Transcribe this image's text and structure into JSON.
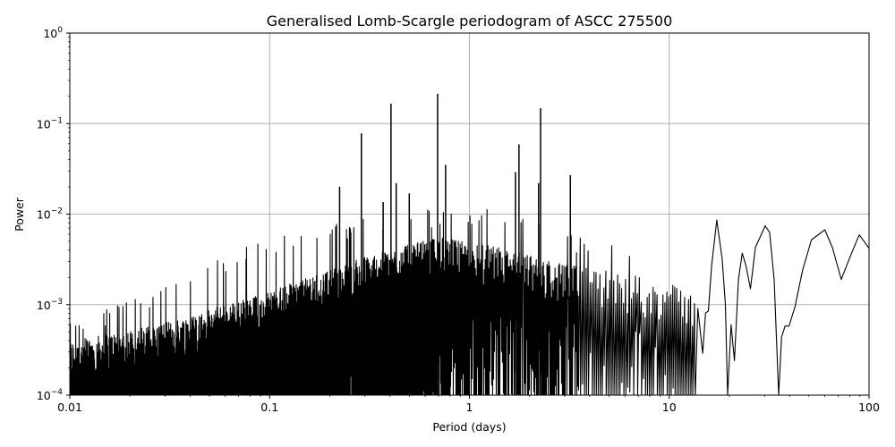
{
  "chart_data": {
    "type": "line",
    "title": "Generalised Lomb-Scargle periodogram of ASCC 275500",
    "xlabel": "Period (days)",
    "ylabel": "Power",
    "xscale": "log",
    "yscale": "log",
    "xlim": [
      0.01,
      100
    ],
    "ylim": [
      0.0001,
      1
    ],
    "grid": true,
    "line_color": "#000000",
    "grid_color": "#b0b0b0",
    "x_ticks": [
      {
        "value": 0.01,
        "label": "0.01"
      },
      {
        "value": 0.1,
        "label": "0.1"
      },
      {
        "value": 1,
        "label": "1"
      },
      {
        "value": 10,
        "label": "10"
      },
      {
        "value": 100,
        "label": "100"
      }
    ],
    "y_ticks": [
      {
        "value": 1,
        "base": "10",
        "exp": "0"
      },
      {
        "value": 0.1,
        "base": "10",
        "exp": "−1"
      },
      {
        "value": 0.01,
        "base": "10",
        "exp": "−2"
      },
      {
        "value": 0.001,
        "base": "10",
        "exp": "−3"
      },
      {
        "value": 0.0001,
        "base": "10",
        "exp": "−4"
      }
    ],
    "noise_envelope": [
      {
        "period": 0.01,
        "typical": 0.00028,
        "max": 0.0007
      },
      {
        "period": 0.03,
        "typical": 0.00045,
        "max": 0.0016
      },
      {
        "period": 0.1,
        "typical": 0.001,
        "max": 0.006
      },
      {
        "period": 0.3,
        "typical": 0.0024,
        "max": 0.009
      },
      {
        "period": 0.7,
        "typical": 0.004,
        "max": 0.012
      },
      {
        "period": 1.5,
        "typical": 0.003,
        "max": 0.012
      },
      {
        "period": 3,
        "typical": 0.002,
        "max": 0.006
      },
      {
        "period": 7,
        "typical": 0.0015,
        "max": 0.005
      },
      {
        "period": 13.5,
        "typical": 0.001,
        "max": 0.003
      }
    ],
    "peaks": [
      {
        "period": 0.224,
        "power": 0.02
      },
      {
        "period": 0.288,
        "power": 0.078
      },
      {
        "period": 0.37,
        "power": 0.0136
      },
      {
        "period": 0.405,
        "power": 0.166
      },
      {
        "period": 0.43,
        "power": 0.022
      },
      {
        "period": 0.5,
        "power": 0.0169
      },
      {
        "period": 0.693,
        "power": 0.213
      },
      {
        "period": 0.76,
        "power": 0.035
      },
      {
        "period": 1.7,
        "power": 0.029
      },
      {
        "period": 1.77,
        "power": 0.059
      },
      {
        "period": 2.22,
        "power": 0.022
      },
      {
        "period": 2.27,
        "power": 0.148
      },
      {
        "period": 3.2,
        "power": 0.027
      }
    ],
    "long_period_curve": [
      [
        13.5,
        0.0001
      ],
      [
        13.9,
        0.00091
      ],
      [
        14.7,
        0.00029
      ],
      [
        15.2,
        0.00081
      ],
      [
        15.7,
        0.00085
      ],
      [
        16.3,
        0.0027
      ],
      [
        17.3,
        0.0086
      ],
      [
        18.4,
        0.0032
      ],
      [
        19.1,
        0.001
      ],
      [
        19.6,
        0.0001
      ],
      [
        20.4,
        0.0006
      ],
      [
        21.2,
        0.00024
      ],
      [
        22.2,
        0.0019
      ],
      [
        23.2,
        0.0037
      ],
      [
        24.2,
        0.0027
      ],
      [
        25.5,
        0.0015
      ],
      [
        27.0,
        0.0043
      ],
      [
        30.2,
        0.0074
      ],
      [
        31.8,
        0.0063
      ],
      [
        33.5,
        0.0019
      ],
      [
        35.3,
        0.0001
      ],
      [
        36.5,
        0.00044
      ],
      [
        38.0,
        0.00058
      ],
      [
        39.8,
        0.00058
      ],
      [
        42.6,
        0.00095
      ],
      [
        46.5,
        0.0024
      ],
      [
        51.5,
        0.0052
      ],
      [
        60.1,
        0.0067
      ],
      [
        65.5,
        0.0043
      ],
      [
        72.6,
        0.0019
      ],
      [
        80.5,
        0.0034
      ],
      [
        89.3,
        0.0059
      ],
      [
        100,
        0.0042
      ]
    ]
  }
}
